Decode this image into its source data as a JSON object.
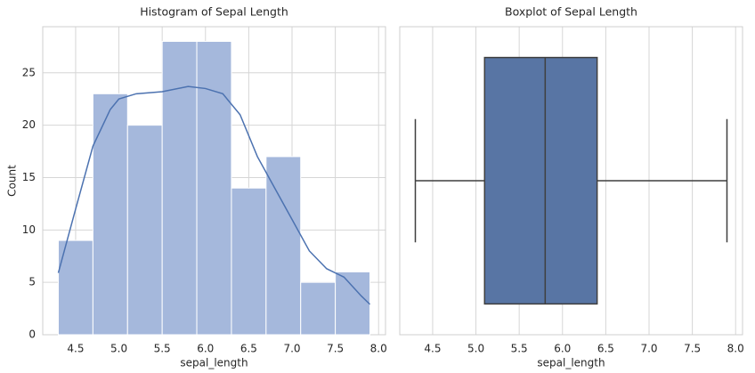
{
  "chart_data": [
    {
      "type": "histogram",
      "title": "Histogram of Sepal Length",
      "xlabel": "sepal_length",
      "ylabel": "Count",
      "bins": [
        4.3,
        4.7,
        5.1,
        5.5,
        5.9,
        6.3,
        6.7,
        7.1,
        7.5,
        7.9
      ],
      "values": [
        9,
        23,
        20,
        28,
        28,
        14,
        17,
        5,
        6
      ],
      "color": "#a5b8dc",
      "kde": {
        "color": "#4c72b0",
        "x": [
          4.3,
          4.5,
          4.7,
          4.9,
          5.0,
          5.2,
          5.5,
          5.8,
          6.0,
          6.2,
          6.4,
          6.6,
          6.8,
          7.0,
          7.2,
          7.4,
          7.6,
          7.8,
          7.9
        ],
        "values": [
          5.9,
          12,
          18,
          21.5,
          22.5,
          23,
          23.2,
          23.7,
          23.5,
          23,
          21,
          17,
          14,
          11,
          8,
          6.3,
          5.5,
          3.7,
          2.9
        ]
      },
      "xlim": [
        4.12,
        8.08
      ],
      "ylim": [
        0,
        29.4
      ],
      "xticks": [
        4.5,
        {
          "value": 5,
          "label": "5.0"
        },
        5.5,
        {
          "value": 6,
          "label": "6.0"
        },
        6.5,
        {
          "value": 7,
          "label": "7.0"
        },
        7.5,
        {
          "value": 8,
          "label": "8.0"
        }
      ],
      "yticks": [
        0,
        5,
        10,
        15,
        20,
        25
      ],
      "grid": true
    },
    {
      "type": "box",
      "title": "Boxplot of Sepal Length",
      "xlabel": "sepal_length",
      "min": 4.3,
      "q1": 5.1,
      "median": 5.8,
      "q3": 6.4,
      "max": 7.9,
      "color": "#5875a4",
      "xlim": [
        4.12,
        8.08
      ],
      "xticks": [
        4.5,
        {
          "value": 5,
          "label": "5.0"
        },
        5.5,
        {
          "value": 6,
          "label": "6.0"
        },
        6.5,
        {
          "value": 7,
          "label": "7.0"
        },
        7.5,
        {
          "value": 8,
          "label": "8.0"
        }
      ],
      "grid": true
    }
  ]
}
